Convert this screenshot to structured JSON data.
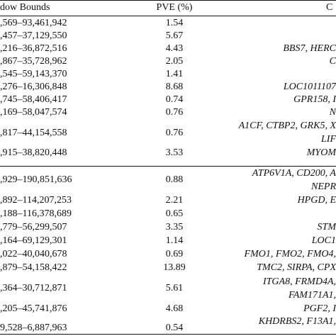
{
  "table": {
    "headers": {
      "bounds": "dow Bounds",
      "pve": "PVE (%)",
      "genes": "C"
    },
    "group1": [
      {
        "bounds": ",569–93,461,942",
        "pve": "1.54",
        "genes": ""
      },
      {
        "bounds": ",457–37,129,550",
        "pve": "5.67",
        "genes": ""
      },
      {
        "bounds": ",216–36,872,516",
        "pve": "4.43",
        "genes": "BBS7, HERC"
      },
      {
        "bounds": ",867–35,728,962",
        "pve": "2.05",
        "genes": "C"
      },
      {
        "bounds": ",545–59,143,370",
        "pve": "1.41",
        "genes": ""
      },
      {
        "bounds": ",276–16,306,848",
        "pve": "8.68",
        "genes": "LOC1011107"
      },
      {
        "bounds": ",745–58,406,417",
        "pve": "0.74",
        "genes": "GPR158, I"
      },
      {
        "bounds": ",169–58,047,574",
        "pve": "0.76",
        "genes": "N"
      },
      {
        "bounds": ",817–44,154,558",
        "pve": "0.76",
        "genes": "A1CF, CTBP2, GRK5, X",
        "genes2": "LIF"
      },
      {
        "bounds": ",915–38,820,448",
        "pve": "3.53",
        "genes": "MYOM"
      }
    ],
    "group2": [
      {
        "bounds": ",929–190,851,636",
        "pve": "0.88",
        "genes": "ATP6V1A, CD200, A",
        "genes2": "NEPR"
      },
      {
        "bounds": ",892–114,207,253",
        "pve": "2.21",
        "genes": "HPGD, E"
      },
      {
        "bounds": ",188–116,378,689",
        "pve": "0.65",
        "genes": ""
      },
      {
        "bounds": ",779–56,299,507",
        "pve": "3.35",
        "genes": "STM"
      },
      {
        "bounds": ",164–69,129,301",
        "pve": "1.14",
        "genes": "LOC1"
      },
      {
        "bounds": ",022–40,040,678",
        "pve": "0.69",
        "genes": "FMO1, FMO2, FMO4,"
      },
      {
        "bounds": ",879–54,158,422",
        "pve": "13.89",
        "genes": "TMC2, SIRPA, CPX"
      },
      {
        "bounds": ",364–30,712,871",
        "pve": "5.61",
        "genes": "ITGA8, FRMD4A,",
        "genes2": "FAM171A1,"
      },
      {
        "bounds": ",205–45,741,876",
        "pve": "4.68",
        "genes": "PGF2, I"
      },
      {
        "bounds": "9,528–6,887,963",
        "pve": "0.54",
        "genes": "KHDRBS2, F13A1,",
        "genes2": "F"
      }
    ]
  }
}
